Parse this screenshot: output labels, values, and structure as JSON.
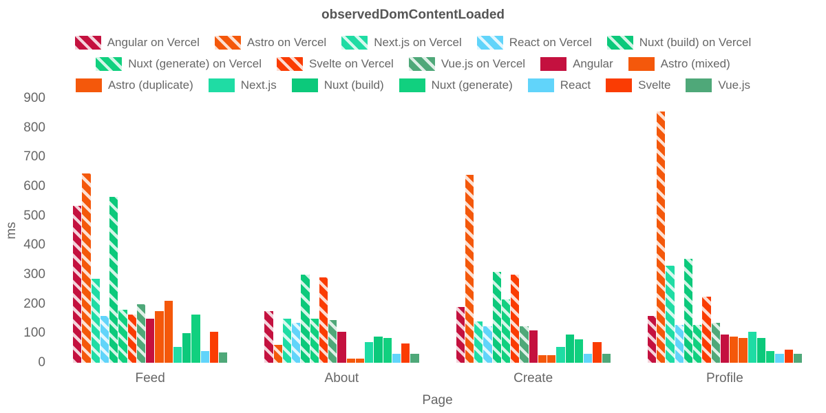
{
  "chart_data": {
    "type": "bar",
    "title": "observedDomContentLoaded",
    "xlabel": "Page",
    "ylabel": "ms",
    "ylim": [
      0,
      900
    ],
    "ytick_step": 100,
    "ytick_labels": [
      "0",
      "100",
      "200",
      "300",
      "400",
      "500",
      "600",
      "700",
      "800",
      "900"
    ],
    "grid": false,
    "legend_position": "top",
    "legend_rows": [
      5,
      5,
      7
    ],
    "categories": [
      "Feed",
      "About",
      "Create",
      "Profile"
    ],
    "series": [
      {
        "name": "Angular on Vercel",
        "color": "#C4113F",
        "hatched": true,
        "values": [
          535,
          175,
          190,
          160
        ]
      },
      {
        "name": "Astro on Vercel",
        "color": "#F4580B",
        "hatched": true,
        "values": [
          645,
          60,
          640,
          855
        ]
      },
      {
        "name": "Next.js on Vercel",
        "color": "#1FDCA4",
        "hatched": true,
        "values": [
          285,
          150,
          140,
          330
        ]
      },
      {
        "name": "React on Vercel",
        "color": "#61D4FA",
        "hatched": true,
        "values": [
          160,
          135,
          125,
          130
        ]
      },
      {
        "name": "Nuxt (build) on Vercel",
        "color": "#0CC97B",
        "hatched": true,
        "values": [
          565,
          300,
          310,
          355
        ]
      },
      {
        "name": "Nuxt (generate) on Vercel",
        "color": "#11D07F",
        "hatched": true,
        "values": [
          180,
          150,
          215,
          130
        ]
      },
      {
        "name": "Svelte on Vercel",
        "color": "#FA3C03",
        "hatched": true,
        "values": [
          165,
          290,
          300,
          225
        ]
      },
      {
        "name": "Vue.js on Vercel",
        "color": "#4FA879",
        "hatched": true,
        "values": [
          200,
          145,
          125,
          135
        ]
      },
      {
        "name": "Angular",
        "color": "#C4113F",
        "hatched": false,
        "values": [
          150,
          105,
          110,
          95
        ]
      },
      {
        "name": "Astro (mixed)",
        "color": "#F4580B",
        "hatched": false,
        "values": [
          175,
          15,
          25,
          90
        ]
      },
      {
        "name": "Astro (duplicate)",
        "color": "#F4580B",
        "hatched": false,
        "values": [
          210,
          15,
          25,
          85
        ]
      },
      {
        "name": "Next.js",
        "color": "#1FDCA4",
        "hatched": false,
        "values": [
          55,
          70,
          55,
          105
        ]
      },
      {
        "name": "Nuxt (build)",
        "color": "#0CC97B",
        "hatched": false,
        "values": [
          100,
          90,
          95,
          85
        ]
      },
      {
        "name": "Nuxt (generate)",
        "color": "#11D07F",
        "hatched": false,
        "values": [
          165,
          85,
          80,
          40
        ]
      },
      {
        "name": "React",
        "color": "#61D4FA",
        "hatched": false,
        "values": [
          40,
          30,
          30,
          30
        ]
      },
      {
        "name": "Svelte",
        "color": "#FA3C03",
        "hatched": false,
        "values": [
          105,
          65,
          70,
          45
        ]
      },
      {
        "name": "Vue.js",
        "color": "#4FA879",
        "hatched": false,
        "values": [
          35,
          30,
          30,
          30
        ]
      }
    ]
  },
  "text_colors": {
    "title": "#555555",
    "labels": "#666666"
  }
}
